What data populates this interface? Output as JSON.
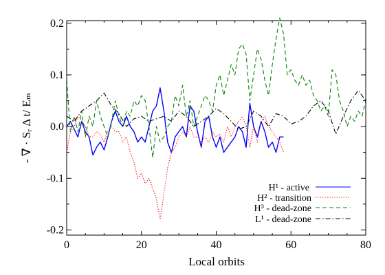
{
  "chart_data": {
    "type": "line",
    "xlabel": "Local orbits",
    "ylabel": "- ∇ · Sᵣ Δ t/ Eₘ",
    "xlim": [
      0,
      80
    ],
    "ylim": [
      -0.21,
      0.205
    ],
    "xticks": [
      0,
      20,
      40,
      60,
      80
    ],
    "yticks": [
      -0.2,
      -0.1,
      0.0,
      0.1,
      0.2
    ],
    "xtick_labels": [
      "0",
      "20",
      "40",
      "60",
      "80"
    ],
    "ytick_labels": [
      "-0.2",
      "-0.1",
      "0.0",
      "0.1",
      "0.2"
    ],
    "grid": false,
    "legend_position": "bottom-right",
    "series": [
      {
        "name": "H¹ - active",
        "color": "#0000ff",
        "dash": "solid",
        "x": [
          0,
          1,
          2,
          3,
          4,
          5,
          6,
          7,
          8,
          9,
          10,
          11,
          12,
          13,
          14,
          15,
          16,
          17,
          18,
          19,
          20,
          21,
          22,
          23,
          24,
          25,
          26,
          27,
          28,
          29,
          30,
          31,
          32,
          33,
          34,
          35,
          36,
          37,
          38,
          39,
          40,
          41,
          42,
          43,
          44,
          45,
          46,
          47,
          48,
          49,
          50,
          51,
          52,
          53,
          54,
          55,
          56,
          57,
          58
        ],
        "y": [
          0.0,
          0.01,
          -0.005,
          -0.02,
          0.01,
          -0.01,
          -0.02,
          -0.055,
          -0.04,
          -0.03,
          -0.045,
          -0.02,
          0.01,
          0.03,
          0.01,
          0.0,
          0.02,
          0.0,
          -0.01,
          -0.03,
          -0.02,
          -0.03,
          0.0,
          0.03,
          0.04,
          0.075,
          0.03,
          -0.03,
          -0.05,
          -0.02,
          -0.01,
          0.0,
          -0.02,
          0.04,
          0.03,
          -0.01,
          -0.04,
          0.01,
          0.02,
          -0.02,
          -0.04,
          -0.02,
          -0.05,
          -0.04,
          -0.03,
          -0.02,
          0.0,
          -0.01,
          -0.04,
          0.045,
          0.0,
          -0.02,
          0.01,
          -0.01,
          -0.04,
          -0.03,
          -0.05,
          -0.02,
          -0.02
        ]
      },
      {
        "name": "H² - transition",
        "color": "#ff0000",
        "dash": "dotted",
        "x": [
          0,
          1,
          2,
          3,
          4,
          5,
          6,
          7,
          8,
          9,
          10,
          11,
          12,
          13,
          14,
          15,
          16,
          17,
          18,
          19,
          20,
          21,
          22,
          23,
          24,
          25,
          26,
          27,
          28,
          29,
          30,
          31,
          32,
          33,
          34,
          35,
          36,
          37,
          38,
          39,
          40,
          41,
          42,
          43,
          44,
          45,
          46,
          47,
          48,
          49,
          50,
          51,
          52,
          53,
          54,
          55,
          56,
          57,
          58
        ],
        "y": [
          -0.05,
          -0.01,
          0.0,
          0.02,
          0.01,
          0.0,
          -0.02,
          -0.02,
          -0.01,
          -0.015,
          -0.03,
          -0.01,
          0.0,
          -0.01,
          -0.01,
          -0.03,
          -0.02,
          -0.05,
          -0.07,
          -0.1,
          -0.09,
          -0.11,
          -0.1,
          -0.12,
          -0.14,
          -0.18,
          -0.13,
          -0.08,
          -0.05,
          -0.04,
          -0.02,
          -0.01,
          -0.02,
          0.0,
          -0.02,
          -0.02,
          -0.03,
          -0.02,
          -0.03,
          -0.01,
          -0.02,
          -0.015,
          -0.03,
          0.0,
          -0.02,
          0.0,
          0.01,
          0.02,
          0.0,
          -0.04,
          0.0,
          -0.03,
          0.01,
          0.02,
          0.0,
          -0.01,
          -0.02,
          -0.03,
          -0.05
        ]
      },
      {
        "name": "H³ - dead-zone",
        "color": "#008000",
        "dash": "dashed",
        "x": [
          0,
          1,
          2,
          3,
          4,
          5,
          6,
          7,
          8,
          9,
          10,
          11,
          12,
          13,
          14,
          15,
          16,
          17,
          18,
          19,
          20,
          21,
          22,
          23,
          24,
          25,
          26,
          27,
          28,
          29,
          30,
          31,
          32,
          33,
          34,
          35,
          36,
          37,
          38,
          39,
          40,
          41,
          42,
          43,
          44,
          45,
          46,
          47,
          48,
          49,
          50,
          51,
          52,
          53,
          54,
          55,
          56,
          57,
          58,
          59,
          60,
          61,
          62,
          63,
          64,
          65,
          66,
          67,
          68,
          69,
          70,
          71,
          72,
          73,
          74,
          75,
          76,
          77,
          78,
          79,
          80
        ],
        "y": [
          0.09,
          -0.01,
          0.02,
          -0.01,
          0.03,
          -0.02,
          0.02,
          0.0,
          0.05,
          0.02,
          0.0,
          -0.02,
          0.01,
          0.05,
          0.02,
          0.0,
          0.03,
          0.02,
          0.05,
          0.04,
          0.06,
          0.05,
          0.0,
          -0.06,
          0.0,
          -0.03,
          -0.02,
          0.0,
          0.01,
          0.06,
          0.04,
          0.08,
          0.02,
          0.05,
          0.0,
          0.02,
          0.04,
          0.06,
          0.05,
          0.03,
          0.08,
          0.1,
          0.06,
          0.09,
          0.12,
          0.1,
          0.15,
          0.16,
          0.14,
          0.05,
          0.1,
          0.15,
          0.13,
          0.09,
          0.06,
          0.12,
          0.17,
          0.21,
          0.18,
          0.1,
          0.11,
          0.09,
          0.08,
          0.1,
          0.08,
          0.09,
          0.06,
          0.05,
          0.03,
          0.04,
          0.02,
          0.11,
          0.1,
          0.05,
          0.03,
          0.0,
          0.02,
          0.01,
          0.03,
          0.02,
          0.05
        ]
      },
      {
        "name": "L¹ - dead-zone",
        "color": "#000000",
        "dash": "dashdot",
        "x": [
          0,
          2,
          4,
          6,
          8,
          10,
          12,
          14,
          16,
          18,
          20,
          22,
          24,
          26,
          28,
          30,
          32,
          34,
          36,
          38,
          40,
          42,
          44,
          46,
          48,
          50,
          52,
          54,
          56,
          58,
          60,
          62,
          64,
          66,
          68,
          70,
          72,
          74,
          76,
          78,
          80
        ],
        "y": [
          0.02,
          0.01,
          0.03,
          0.04,
          0.05,
          0.065,
          0.04,
          0.025,
          0.0,
          0.015,
          0.02,
          0.01,
          0.015,
          0.02,
          0.01,
          0.03,
          0.02,
          0.0,
          0.01,
          0.02,
          0.035,
          0.025,
          0.01,
          -0.005,
          0.0,
          0.03,
          0.02,
          0.0,
          0.025,
          0.02,
          0.005,
          0.01,
          0.02,
          0.04,
          0.05,
          0.03,
          -0.015,
          0.02,
          0.05,
          0.07,
          0.05
        ]
      }
    ]
  }
}
